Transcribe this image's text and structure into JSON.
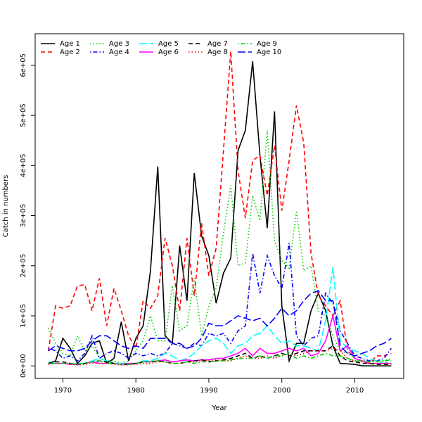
{
  "chart_data": {
    "type": "line",
    "xlabel": "Year",
    "ylabel": "Catch in numbers",
    "x": [
      1968,
      1969,
      1970,
      1971,
      1972,
      1973,
      1974,
      1975,
      1976,
      1977,
      1978,
      1979,
      1980,
      1981,
      1982,
      1983,
      1984,
      1985,
      1986,
      1987,
      1988,
      1989,
      1990,
      1991,
      1992,
      1993,
      1994,
      1995,
      1996,
      1997,
      1998,
      1999,
      2000,
      2001,
      2002,
      2003,
      2004,
      2005,
      2006,
      2007,
      2008,
      2009,
      2010,
      2011,
      2012,
      2013,
      2014,
      2015
    ],
    "xlim": [
      1966.2,
      2016.7
    ],
    "xticks": [
      1970,
      1980,
      1990,
      2000,
      2010
    ],
    "ylim": [
      -25000,
      663000
    ],
    "yticks": [
      {
        "value": 0,
        "label": "0e+00"
      },
      {
        "value": 100000,
        "label": "1e+05"
      },
      {
        "value": 200000,
        "label": "2e+05"
      },
      {
        "value": 300000,
        "label": "3e+05"
      },
      {
        "value": 400000,
        "label": "4e+05"
      },
      {
        "value": 500000,
        "label": "5e+05"
      },
      {
        "value": 600000,
        "label": "6e+05"
      }
    ],
    "legend": "upper left",
    "series": [
      {
        "name": "Age 1",
        "color": "#000000",
        "linestyle": "solid",
        "values": [
          5000,
          10000,
          55000,
          35000,
          5000,
          20000,
          45000,
          50000,
          5000,
          15000,
          88000,
          10000,
          55000,
          80000,
          190000,
          398000,
          60000,
          45000,
          240000,
          130000,
          385000,
          260000,
          220000,
          125000,
          185000,
          215000,
          430000,
          470000,
          608000,
          420000,
          275000,
          508000,
          120000,
          10000,
          45000,
          45000,
          110000,
          145000,
          110000,
          40000,
          5000,
          4000,
          3000,
          0,
          0,
          0,
          0,
          0
        ]
      },
      {
        "name": "Age 2",
        "color": "#ff0000",
        "linestyle": "dashed",
        "values": [
          30000,
          120000,
          115000,
          120000,
          160000,
          162000,
          110000,
          175000,
          80000,
          155000,
          110000,
          60000,
          35000,
          130000,
          115000,
          140000,
          255000,
          200000,
          110000,
          255000,
          140000,
          285000,
          180000,
          235000,
          430000,
          628000,
          390000,
          295000,
          410000,
          420000,
          340000,
          440000,
          310000,
          410000,
          520000,
          445000,
          225000,
          140000,
          120000,
          100000,
          130000,
          30000,
          15000,
          10000,
          5000,
          20000,
          20000,
          25000
        ]
      },
      {
        "name": "Age 3",
        "color": "#00cd00",
        "linestyle": "dotted",
        "values": [
          75000,
          45000,
          25000,
          20000,
          60000,
          30000,
          40000,
          15000,
          10000,
          10000,
          5000,
          10000,
          30000,
          50000,
          100000,
          50000,
          50000,
          160000,
          70000,
          80000,
          175000,
          60000,
          120000,
          155000,
          265000,
          360000,
          200000,
          205000,
          340000,
          290000,
          470000,
          250000,
          210000,
          195000,
          310000,
          190000,
          200000,
          110000,
          100000,
          60000,
          30000,
          25000,
          15000,
          10000,
          10000,
          10000,
          10000,
          15000
        ]
      },
      {
        "name": "Age 4",
        "color": "#0000ff",
        "linestyle": "dotdash",
        "values": [
          35000,
          30000,
          15000,
          20000,
          10000,
          25000,
          60000,
          15000,
          25000,
          30000,
          25000,
          15000,
          25000,
          20000,
          25000,
          20000,
          25000,
          45000,
          40000,
          35000,
          45000,
          40000,
          65000,
          60000,
          65000,
          45000,
          70000,
          80000,
          225000,
          145000,
          220000,
          180000,
          155000,
          245000,
          60000,
          40000,
          55000,
          60000,
          145000,
          125000,
          70000,
          45000,
          20000,
          15000,
          10000,
          10000,
          15000,
          35000
        ]
      },
      {
        "name": "Age 5",
        "color": "#00ffff",
        "linestyle": "longdash",
        "values": [
          8000,
          5000,
          5000,
          3000,
          5000,
          5000,
          10000,
          15000,
          10000,
          5000,
          5000,
          5000,
          5000,
          10000,
          10000,
          15000,
          25000,
          20000,
          10000,
          15000,
          25000,
          40000,
          50000,
          55000,
          45000,
          25000,
          40000,
          45000,
          60000,
          65000,
          80000,
          60000,
          45000,
          50000,
          40000,
          40000,
          35000,
          30000,
          90000,
          197000,
          50000,
          35000,
          30000,
          25000,
          15000,
          10000,
          5000,
          10000
        ]
      },
      {
        "name": "Age 6",
        "color": "#ff00ff",
        "linestyle": "solid",
        "values": [
          5000,
          5000,
          5000,
          3000,
          3000,
          5000,
          8000,
          5000,
          5000,
          5000,
          3000,
          5000,
          5000,
          8000,
          8000,
          10000,
          12000,
          8000,
          10000,
          12000,
          10000,
          12000,
          12000,
          15000,
          15000,
          20000,
          25000,
          35000,
          20000,
          35000,
          25000,
          25000,
          30000,
          35000,
          30000,
          35000,
          20000,
          25000,
          50000,
          100000,
          30000,
          40000,
          15000,
          10000,
          5000,
          5000,
          5000,
          5000
        ]
      },
      {
        "name": "Age 7",
        "color": "#000000",
        "linestyle": "dashed",
        "values": [
          5000,
          8000,
          8000,
          5000,
          3000,
          5000,
          8000,
          10000,
          8000,
          5000,
          3000,
          3000,
          5000,
          8000,
          8000,
          10000,
          8000,
          5000,
          5000,
          8000,
          10000,
          12000,
          8000,
          10000,
          12000,
          15000,
          20000,
          25000,
          15000,
          20000,
          15000,
          20000,
          25000,
          20000,
          25000,
          30000,
          30000,
          30000,
          30000,
          40000,
          20000,
          10000,
          8000,
          5000,
          5000,
          3000,
          3000,
          3000
        ]
      },
      {
        "name": "Age 8",
        "color": "#ff0000",
        "linestyle": "dotted",
        "values": [
          3000,
          5000,
          5000,
          3000,
          2000,
          3000,
          5000,
          5000,
          5000,
          3000,
          2000,
          2000,
          3000,
          5000,
          5000,
          8000,
          8000,
          5000,
          5000,
          8000,
          8000,
          10000,
          10000,
          12000,
          10000,
          10000,
          15000,
          20000,
          15000,
          15000,
          20000,
          15000,
          20000,
          25000,
          20000,
          25000,
          30000,
          30000,
          30000,
          35000,
          30000,
          15000,
          10000,
          8000,
          5000,
          5000,
          5000,
          5000
        ]
      },
      {
        "name": "Age 9",
        "color": "#00cd00",
        "linestyle": "dotdash",
        "values": [
          5000,
          5000,
          5000,
          5000,
          3000,
          5000,
          8000,
          10000,
          5000,
          5000,
          3000,
          3000,
          5000,
          8000,
          8000,
          10000,
          8000,
          5000,
          5000,
          8000,
          5000,
          8000,
          8000,
          10000,
          10000,
          12000,
          15000,
          15000,
          15000,
          20000,
          15000,
          20000,
          20000,
          25000,
          15000,
          20000,
          15000,
          20000,
          25000,
          20000,
          20000,
          15000,
          10000,
          10000,
          8000,
          8000,
          10000,
          12000
        ]
      },
      {
        "name": "Age 10",
        "color": "#0000ff",
        "linestyle": "longdash",
        "values": [
          30000,
          40000,
          35000,
          30000,
          30000,
          35000,
          50000,
          60000,
          60000,
          50000,
          40000,
          35000,
          40000,
          35000,
          55000,
          55000,
          55000,
          45000,
          45000,
          35000,
          40000,
          55000,
          85000,
          80000,
          80000,
          90000,
          100000,
          95000,
          90000,
          95000,
          80000,
          95000,
          115000,
          100000,
          110000,
          130000,
          145000,
          150000,
          130000,
          130000,
          40000,
          25000,
          20000,
          25000,
          30000,
          40000,
          45000,
          55000
        ]
      }
    ]
  }
}
